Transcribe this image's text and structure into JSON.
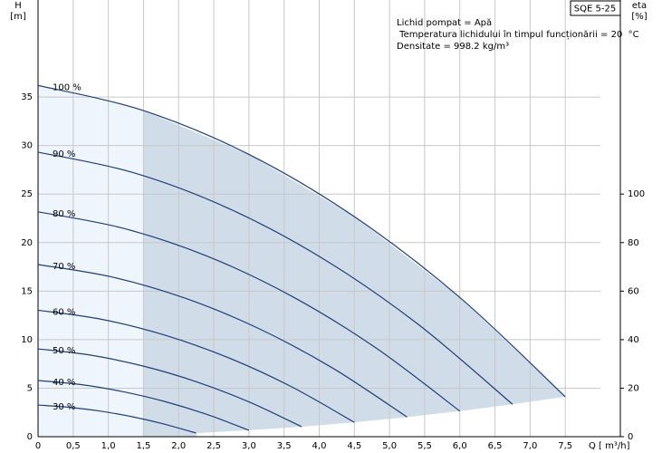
{
  "chart_data": {
    "type": "line",
    "model": "SQE 5-25",
    "annotations": [
      "Lichid pompat = Apă",
      " Temperatura lichidului în timpul funcționării = 20  °C",
      "Densitate = 998.2  kg/m³"
    ],
    "xlabel": "Q [ m³/h]",
    "ylabel": "H",
    "yunit": "[m]",
    "y2label": "eta",
    "y2unit": "[%]",
    "xlim": [
      0,
      8
    ],
    "ylim": [
      0,
      45
    ],
    "y2lim": [
      0,
      180
    ],
    "xticks": [
      0,
      {
        "value": 0.5,
        "label": "0,5"
      },
      {
        "value": 1.0,
        "label": "1,0"
      },
      {
        "value": 1.5,
        "label": "1,5"
      },
      {
        "value": 2.0,
        "label": "2,0"
      },
      {
        "value": 2.5,
        "label": "2,5"
      },
      {
        "value": 3.0,
        "label": "3,0"
      },
      {
        "value": 3.5,
        "label": "3,5"
      },
      {
        "value": 4.0,
        "label": "4,0"
      },
      {
        "value": 4.5,
        "label": "4,5"
      },
      {
        "value": 5.0,
        "label": "5,0"
      },
      {
        "value": 5.5,
        "label": "5,5"
      },
      {
        "value": 6.0,
        "label": "6,0"
      },
      {
        "value": 6.5,
        "label": "6,5"
      },
      {
        "value": 7.0,
        "label": "7,0"
      },
      {
        "value": 7.5,
        "label": "7,5"
      }
    ],
    "yticks": [
      0,
      5,
      10,
      15,
      20,
      25,
      30,
      35
    ],
    "y2ticks": [
      0,
      20,
      40,
      60,
      80,
      100
    ],
    "grid": true,
    "color": "#1f3f7a",
    "fill_colors": [
      "#eef5fc",
      "#d0dce8"
    ],
    "shade_split": 1.5,
    "series": [
      {
        "name": "100 %",
        "x": [
          0,
          1.5,
          3.0,
          4.5,
          6.0,
          7.5
        ],
        "values": [
          36.2,
          33.6,
          29.09,
          22.67,
          14.35,
          4.12
        ]
      },
      {
        "name": "90 %",
        "x": [
          0,
          1.35,
          2.7,
          4.05,
          5.4,
          6.75
        ],
        "values": [
          29.32,
          27.22,
          23.56,
          18.36,
          11.62,
          3.34
        ]
      },
      {
        "name": "80 %",
        "x": [
          0,
          1.2,
          2.4,
          3.6,
          4.8,
          6.0
        ],
        "values": [
          23.17,
          21.5,
          18.62,
          14.51,
          9.18,
          2.64
        ]
      },
      {
        "name": "70 %",
        "x": [
          0,
          1.05,
          2.1,
          3.15,
          4.2,
          5.25
        ],
        "values": [
          17.74,
          16.46,
          14.25,
          11.11,
          7.03,
          2.02
        ]
      },
      {
        "name": "60 %",
        "x": [
          0,
          0.9,
          1.8,
          2.7,
          3.6,
          4.5
        ],
        "values": [
          13.03,
          12.1,
          10.47,
          8.16,
          5.17,
          1.48
        ]
      },
      {
        "name": "50 %",
        "x": [
          0,
          0.75,
          1.5,
          2.25,
          3.0,
          3.75
        ],
        "values": [
          9.05,
          8.4,
          7.27,
          5.67,
          3.59,
          1.03
        ]
      },
      {
        "name": "40 %",
        "x": [
          0,
          0.6,
          1.2,
          1.8,
          2.4,
          3.0
        ],
        "values": [
          5.79,
          5.38,
          4.65,
          3.63,
          2.3,
          0.66
        ]
      },
      {
        "name": "30 %",
        "x": [
          0,
          0.45,
          0.9,
          1.35,
          1.8,
          2.25
        ],
        "values": [
          3.26,
          3.02,
          2.62,
          2.04,
          1.29,
          0.37
        ]
      }
    ]
  }
}
